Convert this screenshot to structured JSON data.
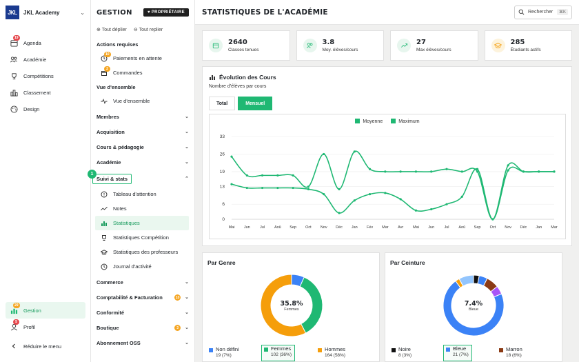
{
  "app": {
    "logo": "JKL",
    "name": "JKL Academy"
  },
  "sidebar": {
    "items": [
      {
        "label": "Agenda",
        "icon": "calendar-icon",
        "badge": "19"
      },
      {
        "label": "Académie",
        "icon": "users-icon"
      },
      {
        "label": "Compétitions",
        "icon": "trophy-icon"
      },
      {
        "label": "Classement",
        "icon": "ranking-icon"
      },
      {
        "label": "Design",
        "icon": "palette-icon"
      }
    ],
    "bottom": [
      {
        "label": "Gestion",
        "icon": "chart-icon",
        "badge": "29",
        "active": true
      },
      {
        "label": "Profil",
        "icon": "user-icon",
        "badge": "5"
      },
      {
        "label": "Réduire le menu",
        "icon": "chevron-left-icon"
      }
    ]
  },
  "panel": {
    "title": "GESTION",
    "owner_badge": "PROPRIÉTAIRE",
    "expand_all": "Tout déplier",
    "collapse_all": "Tout replier",
    "groups": {
      "actions": "Actions requises",
      "paiements": "Paiements en attente",
      "paiements_badge": "10",
      "commandes": "Commandes",
      "commandes_badge": "2",
      "vue_ensemble_group": "Vue d'ensemble",
      "vue_ensemble": "Vue d'ensemble",
      "membres": "Membres",
      "acquisition": "Acquisition",
      "cours": "Cours & pédagogie",
      "academie": "Académie",
      "suivi": "Suivi & stats",
      "suivi_marker": "1",
      "tableau": "Tableau d'attention",
      "notes": "Notes",
      "statistiques": "Statistiques",
      "stat_comp": "Statistiques Compétition",
      "stat_prof": "Statistiques des professeurs",
      "journal": "Journal d'activité",
      "commerce": "Commerce",
      "compta": "Comptabilité & Facturation",
      "compta_badge": "10",
      "conformite": "Conformité",
      "boutique": "Boutique",
      "boutique_badge": "3",
      "abonnement": "Abonnement OSS"
    }
  },
  "main": {
    "title": "STATISTIQUES DE L'ACADÉMIE",
    "search": "Rechercher",
    "shortcut": "⌘K",
    "kpis": [
      {
        "value": "2640",
        "label": "Classes tenues",
        "icon": "calendar-icon"
      },
      {
        "value": "3.8",
        "label": "Moy. élèves/cours",
        "icon": "users-icon"
      },
      {
        "value": "27",
        "label": "Max élèves/cours",
        "icon": "trend-up-icon"
      },
      {
        "value": "285",
        "label": "Étudiants actifs",
        "icon": "graduation-cap-icon"
      }
    ],
    "chart_title": "Évolution des Cours",
    "chart_subtitle": "Nombre d'élèves par cours",
    "tab_total": "Total",
    "tab_mensuel": "Mensuel"
  },
  "chart_data": {
    "type": "line",
    "x": [
      "Mai",
      "Jun",
      "Jul",
      "Aoû",
      "Sep",
      "Oct",
      "Nov",
      "Déc",
      "Jan",
      "Fév",
      "Mar",
      "Avr",
      "Mai",
      "Jun",
      "Jul",
      "Aoû",
      "Sep",
      "Oct",
      "Nov",
      "Déc",
      "Jan",
      "Mar"
    ],
    "series": [
      {
        "name": "Moyenne",
        "values": [
          14,
          12.5,
          12.5,
          12.5,
          12.5,
          12,
          10,
          2.5,
          7.5,
          10,
          10.5,
          8,
          3.5,
          4,
          6,
          9,
          20,
          0,
          19.5,
          19,
          19,
          19
        ]
      },
      {
        "name": "Maximum",
        "values": [
          25,
          17.5,
          17.5,
          17.5,
          17.5,
          13,
          26,
          12,
          27,
          20,
          19,
          19,
          19,
          19,
          20,
          19,
          19,
          0,
          21.5,
          19,
          19,
          19
        ]
      }
    ],
    "yticks": [
      0,
      6,
      13,
      19,
      26,
      33
    ],
    "ylim": [
      0,
      33
    ],
    "colors": [
      "#1fb873",
      "#1fb873"
    ]
  },
  "genre": {
    "title": "Par Genre",
    "center_value": "35.8%",
    "center_label": "Femmes",
    "slices": [
      {
        "label": "Non défini",
        "count": "19 (7%)",
        "value": 19,
        "color": "#3b82f6"
      },
      {
        "label": "Femmes",
        "count": "102 (36%)",
        "value": 102,
        "color": "#1fb873"
      },
      {
        "label": "Hommes",
        "count": "164 (58%)",
        "value": 164,
        "color": "#f59e0b"
      }
    ]
  },
  "ceinture": {
    "title": "Par Ceinture",
    "center_value": "7.4%",
    "center_label": "Bleue",
    "slices": [
      {
        "label": "Noire",
        "count": "8 (3%)",
        "value": 8,
        "color": "#111111"
      },
      {
        "label": "Bleue",
        "count": "21 (7%)",
        "value": 21,
        "color": "#3b82f6"
      },
      {
        "label": "Marron",
        "count": "18 (6%)",
        "value": 18,
        "color": "#8b3a14"
      }
    ],
    "extra_colors": [
      "#3b82f6",
      "#f59e0b",
      "#c084fc",
      "#a855f7",
      "#8b3a14",
      "#3b82f6"
    ]
  }
}
